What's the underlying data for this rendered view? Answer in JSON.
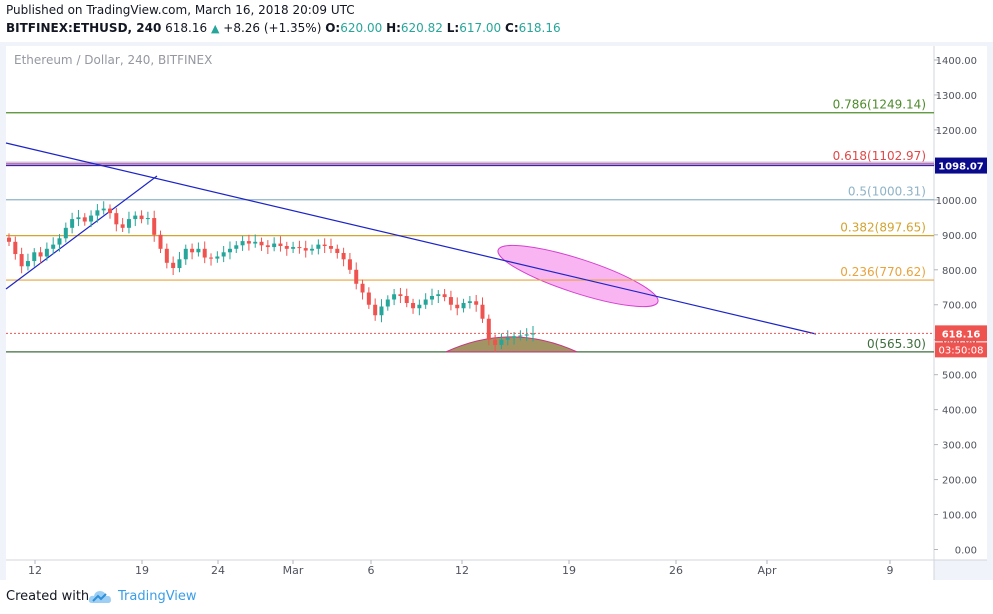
{
  "header": {
    "published": "Published on TradingView.com, March 16, 2018 20:09 UTC",
    "symbol": "BITFINEX:ETHUSD, 240",
    "last": "618.16",
    "change": "+8.26 (+1.35%)",
    "open_label": "O:",
    "open": "620.00",
    "high_label": "H:",
    "high": "620.82",
    "low_label": "L:",
    "low": "617.00",
    "close_label": "C:",
    "close": "618.16"
  },
  "footer": {
    "created_with": "Created with",
    "brand": "TradingView"
  },
  "colors": {
    "bullish": "#26a69a",
    "bearish": "#ef5350",
    "trendline": "#1c24c8",
    "ellipse_fill": "#f7a8f0",
    "ellipse_stroke": "#d640d0",
    "semicircle_fill": "#a39463"
  },
  "chart_data": {
    "type": "candlestick",
    "title": "Ethereum / Dollar, 240, BITFINEX",
    "x_ticks": [
      "12",
      "19",
      "24",
      "Mar",
      "6",
      "12",
      "19",
      "26",
      "Apr",
      "9"
    ],
    "y_ticks": [
      "1400.00",
      "1300.00",
      "1200.00",
      "1100.00",
      "1000.00",
      "900.00",
      "800.00",
      "700.00",
      "600.00",
      "500.00",
      "400.00",
      "300.00",
      "200.00",
      "100.00",
      "0.00"
    ],
    "ylim": [
      -30,
      1440
    ],
    "fibonacci_levels": [
      {
        "label": "0.786(1249.14)",
        "value": 1249.14,
        "color": "#4d8c2b"
      },
      {
        "label": "0.618(1102.97)",
        "value": 1102.97,
        "color": "#e04848"
      },
      {
        "label": "0.5(1000.31)",
        "value": 1000.31,
        "color": "#8fb3c7"
      },
      {
        "label": "0.382(897.65)",
        "value": 897.65,
        "color": "#d4a431"
      },
      {
        "label": "0.236(770.62)",
        "value": 770.62,
        "color": "#e8a33d"
      },
      {
        "label": "0(565.30)",
        "value": 565.3,
        "color": "#3d6e3d"
      }
    ],
    "price_badges": [
      {
        "label": "1098.07",
        "value": 1098.07,
        "color": "#0a0a8c"
      },
      {
        "label": "618.16",
        "value": 618.16,
        "color": "#ef5350"
      }
    ],
    "countdown": "03:50:08",
    "current_price": 618.16,
    "close_series": [
      880,
      845,
      810,
      825,
      850,
      838,
      860,
      872,
      890,
      920,
      945,
      950,
      938,
      955,
      970,
      975,
      962,
      930,
      920,
      945,
      955,
      945,
      948,
      900,
      860,
      820,
      805,
      830,
      860,
      850,
      860,
      835,
      832,
      838,
      850,
      860,
      870,
      882,
      875,
      880,
      870,
      865,
      875,
      868,
      860,
      865,
      862,
      855,
      860,
      872,
      868,
      860,
      848,
      830,
      800,
      760,
      735,
      700,
      670,
      695,
      715,
      730,
      725,
      705,
      690,
      700,
      715,
      725,
      730,
      722,
      700,
      690,
      705,
      710,
      700,
      660,
      600,
      585,
      600,
      606,
      610,
      612,
      615,
      618.16
    ]
  }
}
